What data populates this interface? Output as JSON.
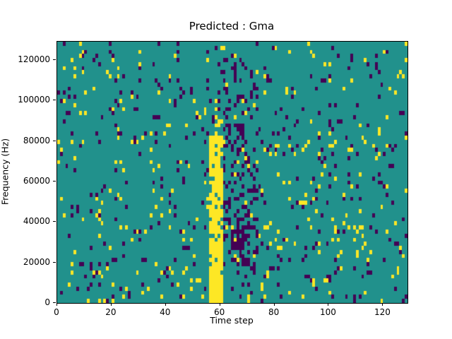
{
  "figure": {
    "background": "#ffffff"
  },
  "chart_data": {
    "type": "heatmap",
    "title": "Predicted : Gma",
    "xlabel": "Time step",
    "ylabel": "Frequency (Hz)",
    "xlim": [
      0,
      129
    ],
    "ylim": [
      0,
      129000
    ],
    "xticks": [
      0,
      20,
      40,
      60,
      80,
      100,
      120
    ],
    "yticks": [
      0,
      20000,
      40000,
      60000,
      80000,
      100000,
      120000
    ],
    "legend": "none",
    "grid_lines": "off",
    "colormap": {
      "name": "viridis-3-level",
      "mid_background": "#21918c",
      "high": "#fde725",
      "low": "#440154"
    },
    "grid": {
      "cols": 129,
      "rows": 64
    },
    "noise": {
      "seed": 1337,
      "high_density": 0.035,
      "low_density": 0.042
    },
    "features": [
      {
        "name": "yellow-band",
        "col_start": 56,
        "col_end": 60,
        "hz_start": 0,
        "hz_end": 82000,
        "value": "high",
        "density": 0.85
      },
      {
        "name": "yellow-band-top",
        "col_start": 57,
        "col_end": 59,
        "hz_start": 82000,
        "hz_end": 100000,
        "value": "high",
        "density": 0.35
      },
      {
        "name": "purple-cluster",
        "col_start": 61,
        "col_end": 73,
        "hz_start": 15000,
        "hz_end": 118000,
        "value": "low",
        "density": 0.22
      },
      {
        "name": "purple-blob",
        "col_start": 64,
        "col_end": 68,
        "hz_start": 26000,
        "hz_end": 36000,
        "value": "low",
        "density": 0.8
      },
      {
        "name": "right-yellow-patch",
        "col_start": 100,
        "col_end": 112,
        "hz_start": 24000,
        "hz_end": 46000,
        "value": "high",
        "density": 0.12
      }
    ]
  }
}
